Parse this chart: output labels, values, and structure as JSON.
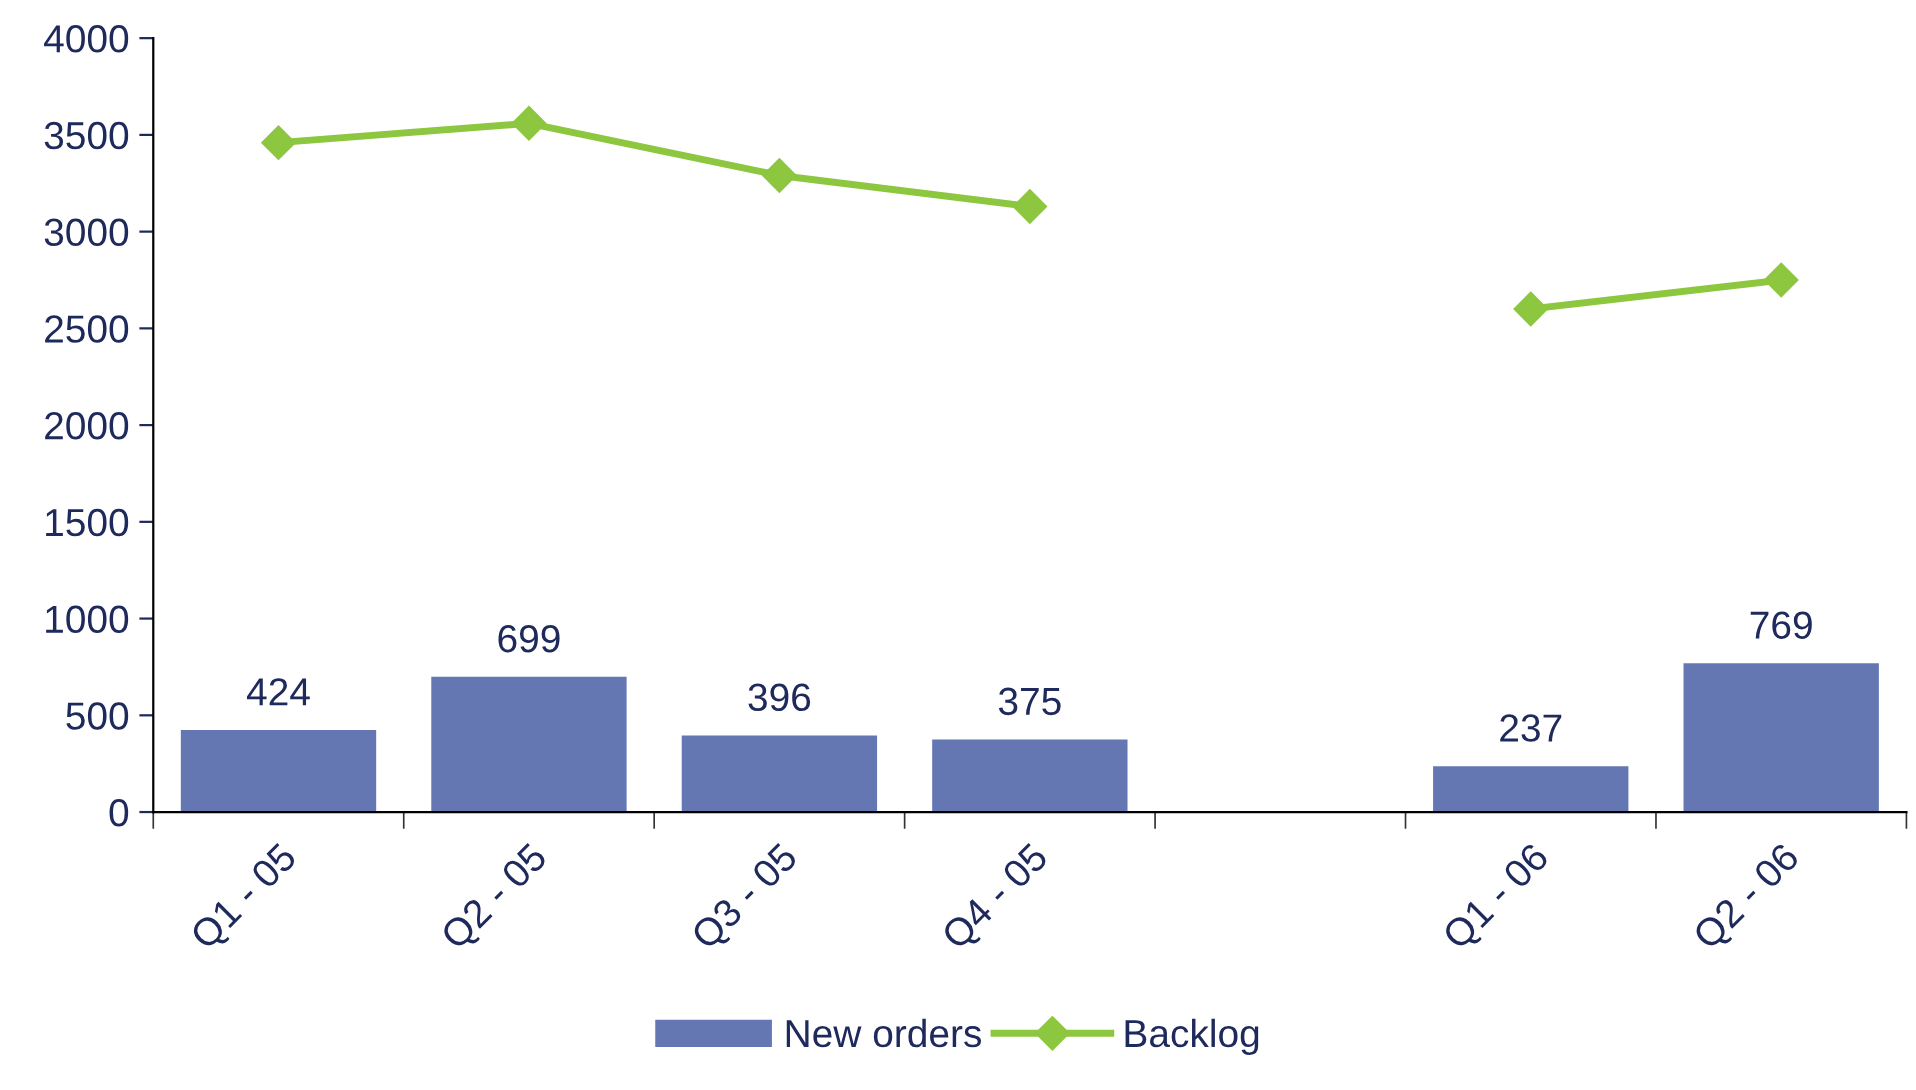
{
  "chart_data": {
    "type": "bar",
    "categories": [
      "Q1 - 05",
      "Q2 - 05",
      "Q3 - 05",
      "Q4 - 05",
      null,
      "Q1 - 06",
      "Q2 - 06"
    ],
    "series": [
      {
        "name": "New orders",
        "color": "#6577b3",
        "values": [
          424,
          699,
          396,
          375,
          null,
          237,
          769
        ],
        "value_labels": [
          "424",
          "699",
          "396",
          "375",
          null,
          "237",
          "769"
        ]
      },
      {
        "name": "Backlog",
        "type": "line",
        "color": "#8dc63f",
        "marker": "diamond",
        "values": [
          3460,
          3560,
          3290,
          3130,
          null,
          2600,
          2750
        ]
      }
    ],
    "ylim": [
      0,
      4000
    ],
    "yticks": [
      0,
      500,
      1000,
      1500,
      2000,
      2500,
      3000,
      3500,
      4000
    ],
    "grid": false,
    "legend": "bottom"
  }
}
